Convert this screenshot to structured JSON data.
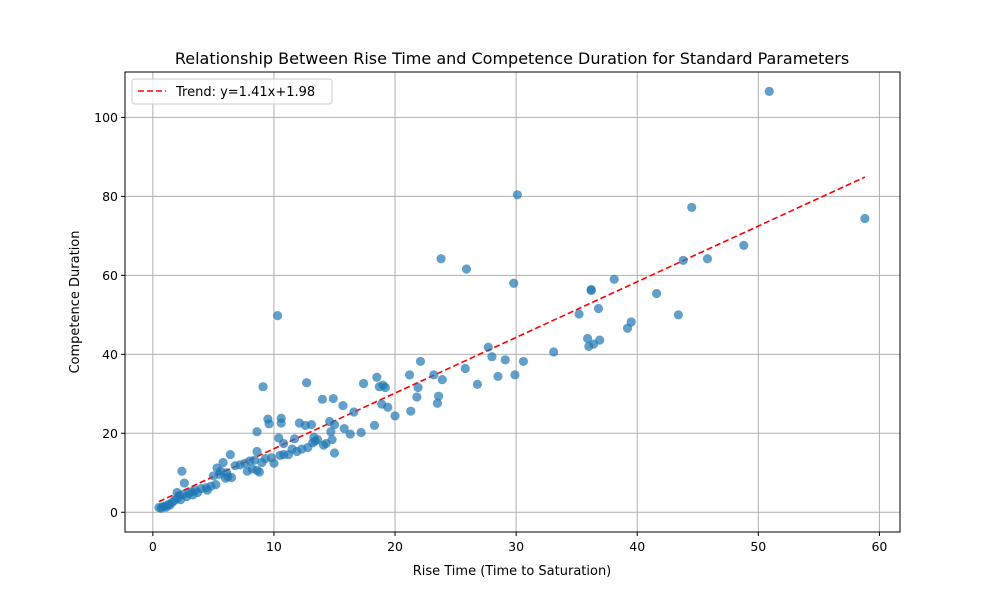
{
  "chart_data": {
    "type": "scatter",
    "title": "Relationship Between Rise Time and Competence Duration for Standard Parameters",
    "xlabel": "Rise Time (Time to Saturation)",
    "ylabel": "Competence Duration",
    "xlim": [
      -2.3,
      61.7
    ],
    "ylim": [
      -5,
      111.5
    ],
    "xticks": [
      0,
      10,
      20,
      30,
      40,
      50,
      60
    ],
    "yticks": [
      0,
      20,
      40,
      60,
      80,
      100
    ],
    "xtick_labels": [
      "0",
      "10",
      "20",
      "30",
      "40",
      "50",
      "60"
    ],
    "ytick_labels": [
      "0",
      "20",
      "40",
      "60",
      "80",
      "100"
    ],
    "grid": true,
    "legend_position": "top-left",
    "series": [
      {
        "kind": "scatter",
        "color": "#1f77b4",
        "points": [
          [
            0.5,
            1.2
          ],
          [
            0.7,
            1.0
          ],
          [
            0.8,
            1.4
          ],
          [
            1.0,
            1.6
          ],
          [
            1.1,
            1.3
          ],
          [
            1.3,
            2.0
          ],
          [
            1.4,
            1.8
          ],
          [
            1.6,
            2.5
          ],
          [
            1.8,
            3.0
          ],
          [
            2.0,
            3.5
          ],
          [
            2.0,
            5.0
          ],
          [
            2.2,
            4.2
          ],
          [
            2.3,
            3.2
          ],
          [
            2.4,
            10.4
          ],
          [
            2.5,
            4.5
          ],
          [
            2.6,
            7.4
          ],
          [
            2.8,
            4.0
          ],
          [
            3.0,
            4.8
          ],
          [
            3.2,
            5.2
          ],
          [
            3.3,
            4.4
          ],
          [
            3.5,
            5.6
          ],
          [
            3.7,
            5.0
          ],
          [
            4.0,
            6.0
          ],
          [
            4.4,
            6.2
          ],
          [
            4.5,
            5.6
          ],
          [
            4.8,
            6.6
          ],
          [
            5.0,
            9.2
          ],
          [
            5.2,
            7.0
          ],
          [
            5.3,
            11.2
          ],
          [
            5.5,
            9.6
          ],
          [
            5.6,
            10.4
          ],
          [
            5.8,
            12.6
          ],
          [
            6.0,
            8.6
          ],
          [
            6.1,
            10.0
          ],
          [
            6.2,
            9.0
          ],
          [
            6.4,
            14.6
          ],
          [
            6.5,
            8.8
          ],
          [
            6.8,
            11.8
          ],
          [
            7.2,
            12.0
          ],
          [
            7.6,
            12.4
          ],
          [
            7.8,
            10.4
          ],
          [
            8.0,
            13.0
          ],
          [
            8.2,
            11.0
          ],
          [
            8.4,
            13.2
          ],
          [
            8.6,
            10.6
          ],
          [
            8.6,
            15.4
          ],
          [
            8.6,
            20.4
          ],
          [
            8.8,
            10.2
          ],
          [
            9.0,
            12.6
          ],
          [
            9.1,
            31.8
          ],
          [
            9.3,
            13.6
          ],
          [
            9.5,
            23.6
          ],
          [
            9.6,
            22.4
          ],
          [
            9.8,
            13.8
          ],
          [
            10.0,
            12.4
          ],
          [
            10.3,
            49.8
          ],
          [
            10.4,
            18.8
          ],
          [
            10.5,
            14.4
          ],
          [
            10.6,
            23.8
          ],
          [
            10.6,
            22.6
          ],
          [
            10.8,
            17.4
          ],
          [
            10.8,
            14.6
          ],
          [
            11.2,
            14.6
          ],
          [
            11.5,
            16.0
          ],
          [
            11.7,
            18.6
          ],
          [
            11.9,
            15.4
          ],
          [
            12.1,
            22.6
          ],
          [
            12.3,
            16.0
          ],
          [
            12.6,
            22.0
          ],
          [
            12.7,
            32.8
          ],
          [
            12.8,
            16.4
          ],
          [
            13.1,
            22.2
          ],
          [
            13.2,
            17.6
          ],
          [
            13.3,
            19.0
          ],
          [
            13.4,
            18.0
          ],
          [
            13.6,
            18.4
          ],
          [
            14.0,
            28.6
          ],
          [
            14.1,
            17.0
          ],
          [
            14.3,
            17.4
          ],
          [
            14.6,
            23.0
          ],
          [
            14.7,
            20.4
          ],
          [
            14.8,
            18.4
          ],
          [
            14.9,
            28.8
          ],
          [
            15.0,
            15.0
          ],
          [
            15.0,
            22.2
          ],
          [
            15.7,
            27.0
          ],
          [
            15.8,
            21.2
          ],
          [
            16.3,
            19.8
          ],
          [
            16.6,
            25.4
          ],
          [
            17.2,
            20.2
          ],
          [
            17.4,
            32.6
          ],
          [
            18.3,
            22.0
          ],
          [
            18.5,
            34.2
          ],
          [
            18.7,
            31.8
          ],
          [
            18.9,
            27.4
          ],
          [
            19.0,
            32.2
          ],
          [
            19.2,
            31.6
          ],
          [
            19.4,
            26.6
          ],
          [
            20.0,
            24.4
          ],
          [
            21.2,
            34.8
          ],
          [
            21.3,
            25.6
          ],
          [
            21.8,
            29.2
          ],
          [
            21.9,
            31.6
          ],
          [
            22.1,
            38.2
          ],
          [
            23.2,
            34.8
          ],
          [
            23.5,
            27.6
          ],
          [
            23.6,
            29.4
          ],
          [
            23.8,
            64.2
          ],
          [
            23.9,
            33.6
          ],
          [
            25.8,
            36.4
          ],
          [
            25.9,
            61.6
          ],
          [
            26.8,
            32.4
          ],
          [
            27.7,
            41.8
          ],
          [
            28.0,
            39.4
          ],
          [
            28.5,
            34.4
          ],
          [
            29.1,
            38.6
          ],
          [
            29.8,
            58.0
          ],
          [
            29.9,
            34.8
          ],
          [
            30.1,
            80.4
          ],
          [
            30.6,
            38.2
          ],
          [
            33.1,
            40.6
          ],
          [
            35.2,
            50.2
          ],
          [
            35.9,
            44.0
          ],
          [
            36.0,
            42.0
          ],
          [
            36.2,
            56.4
          ],
          [
            36.2,
            56.2
          ],
          [
            36.4,
            42.6
          ],
          [
            36.8,
            51.6
          ],
          [
            36.9,
            43.6
          ],
          [
            38.1,
            59.0
          ],
          [
            39.2,
            46.6
          ],
          [
            39.5,
            48.2
          ],
          [
            41.6,
            55.4
          ],
          [
            43.4,
            50.0
          ],
          [
            43.8,
            63.8
          ],
          [
            44.5,
            77.2
          ],
          [
            45.8,
            64.2
          ],
          [
            48.8,
            67.6
          ],
          [
            50.9,
            106.6
          ],
          [
            58.8,
            74.4
          ]
        ]
      },
      {
        "kind": "trend",
        "name": "Trend: y=1.41x+1.98",
        "color": "#ff0000",
        "slope": 1.41,
        "intercept": 1.98,
        "x_range": [
          0.5,
          58.8
        ]
      }
    ]
  }
}
